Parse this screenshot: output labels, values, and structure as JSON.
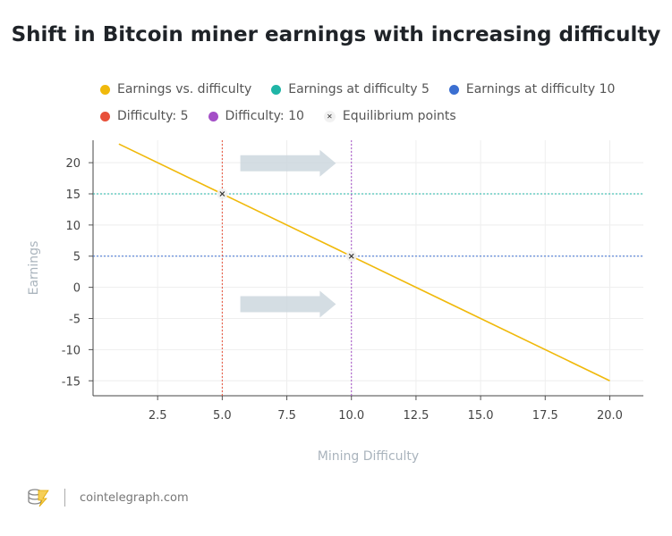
{
  "chart_data": {
    "type": "line",
    "title": "Shift in Bitcoin miner earnings with increasing difficulty",
    "xlabel": "Mining Difficulty",
    "ylabel": "Earnings",
    "xlim": [
      0,
      21.3
    ],
    "ylim": [
      -17.4,
      23.6
    ],
    "xticks": [
      2.5,
      5.0,
      7.5,
      10.0,
      12.5,
      15.0,
      17.5,
      20.0
    ],
    "xtick_labels": [
      "2.5",
      "5.0",
      "7.5",
      "10.0",
      "12.5",
      "15.0",
      "17.5",
      "20.0"
    ],
    "yticks": [
      20,
      15,
      10,
      5,
      0,
      -5,
      -10,
      -15
    ],
    "ytick_labels": [
      "20",
      "15",
      "10",
      "5",
      "0",
      "-5",
      "-10",
      "-15"
    ],
    "grid": true,
    "legend_placement": "top",
    "series": [
      {
        "name": "Earnings vs. difficulty",
        "color": "#f0b90b",
        "kind": "line",
        "x": [
          1,
          20
        ],
        "y": [
          23,
          -15
        ]
      },
      {
        "name": "Earnings at difficulty 5",
        "color": "#1fb5a6",
        "kind": "hline",
        "y": 15
      },
      {
        "name": "Earnings at difficulty 10",
        "color": "#3b6fd1",
        "kind": "hline",
        "y": 5
      },
      {
        "name": "Difficulty: 5",
        "color": "#e8503a",
        "kind": "vline",
        "x": 5
      },
      {
        "name": "Difficulty: 10",
        "color": "#a44fc7",
        "kind": "vline",
        "x": 10
      },
      {
        "name": "Equilibrium points",
        "color": "#333333",
        "kind": "scatter",
        "x": [
          5,
          10
        ],
        "y": [
          15,
          5
        ]
      }
    ],
    "annotations": [
      {
        "type": "arrow",
        "direction": "right",
        "from": [
          5.7,
          19.9
        ],
        "to": [
          9.4,
          19.9
        ]
      },
      {
        "type": "arrow",
        "direction": "right",
        "from": [
          5.7,
          -2.7
        ],
        "to": [
          9.4,
          -2.7
        ]
      }
    ]
  },
  "footer": {
    "brand": "cointelegraph.com"
  }
}
